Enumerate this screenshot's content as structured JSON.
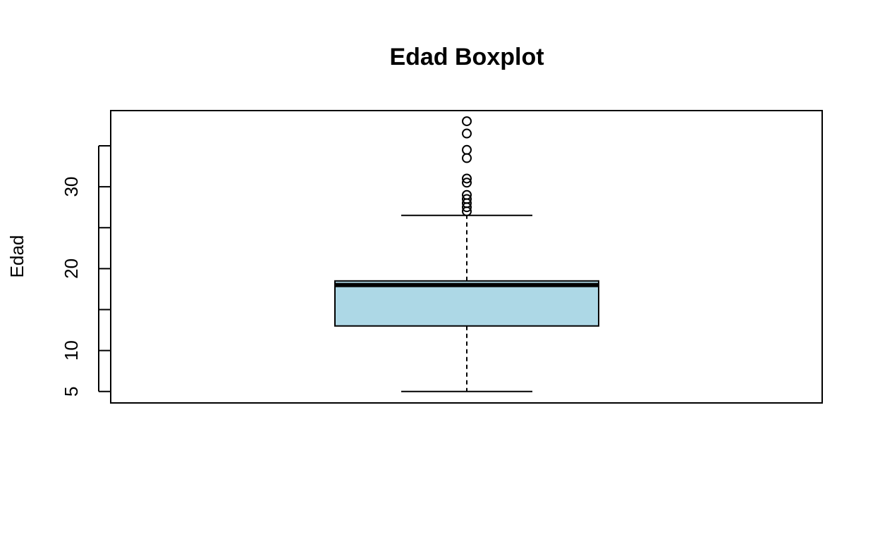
{
  "chart_data": {
    "type": "boxplot",
    "title": "Edad Boxplot",
    "xlabel": "",
    "ylabel": "Edad",
    "ylim": [
      3.6,
      39.3
    ],
    "y_ticks": [
      5,
      10,
      15,
      20,
      25,
      30,
      35
    ],
    "y_tick_labels": [
      "5",
      "10",
      "",
      "20",
      "",
      "30",
      ""
    ],
    "box": {
      "min": 5,
      "q1": 13,
      "median": 18,
      "q3": 18.5,
      "max": 26.5
    },
    "outliers": [
      27,
      27.5,
      28,
      28.5,
      29,
      30.5,
      31,
      33.5,
      34.5,
      36.5,
      38
    ],
    "box_fill": "#ADD8E6",
    "grid": false
  }
}
